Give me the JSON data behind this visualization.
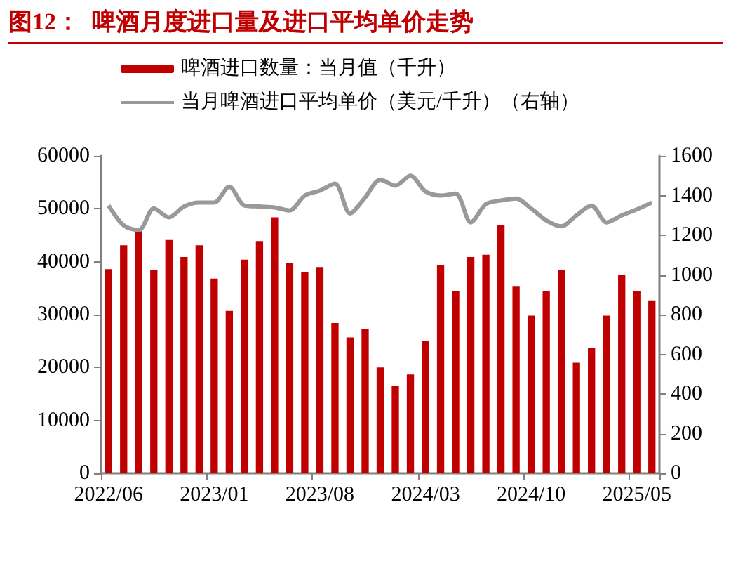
{
  "chart_data": {
    "type": "bar",
    "title": "图12：  啤酒月度进口量及进口平均单价走势",
    "categories": [
      "2022/06",
      null,
      null,
      null,
      null,
      null,
      null,
      "2023/01",
      null,
      null,
      null,
      null,
      null,
      null,
      "2023/08",
      null,
      null,
      null,
      null,
      null,
      null,
      "2024/03",
      null,
      null,
      null,
      null,
      null,
      null,
      "2024/10",
      null,
      null,
      null,
      null,
      null,
      null,
      "2025/05",
      null
    ],
    "series": [
      {
        "name": "啤酒进口数量：当月值（千升）",
        "color": "#c00000",
        "values": [
          38600,
          43100,
          46000,
          38400,
          44100,
          40900,
          43100,
          36800,
          30700,
          40400,
          43900,
          48400,
          39700,
          38100,
          39000,
          28400,
          25700,
          27300,
          20000,
          16500,
          18700,
          25000,
          39300,
          34400,
          40900,
          41300,
          46900,
          35400,
          29800,
          34400,
          38500,
          20900,
          23700,
          29800,
          37500,
          34500,
          32700
        ]
      },
      {
        "type": "line",
        "name": "当月啤酒进口平均单价（美元/千升）（右轴）",
        "color": "#999999",
        "axis": "y2",
        "values": [
          1350,
          1250,
          1225,
          1335,
          1290,
          1345,
          1365,
          1365,
          1445,
          1350,
          1345,
          1340,
          1325,
          1400,
          1425,
          1460,
          1310,
          1390,
          1480,
          1450,
          1500,
          1420,
          1400,
          1410,
          1265,
          1357,
          1375,
          1385,
          1335,
          1275,
          1245,
          1300,
          1350,
          1265,
          1300,
          1330,
          1365
        ]
      }
    ],
    "ylim": [
      0,
      60000
    ],
    "yticks": [
      0,
      10000,
      20000,
      30000,
      40000,
      50000,
      60000
    ],
    "y2lim": [
      0,
      1600
    ],
    "y2ticks": [
      0,
      200,
      400,
      600,
      800,
      1000,
      1200,
      1400,
      1600
    ],
    "legend": "top",
    "marker": "none"
  }
}
